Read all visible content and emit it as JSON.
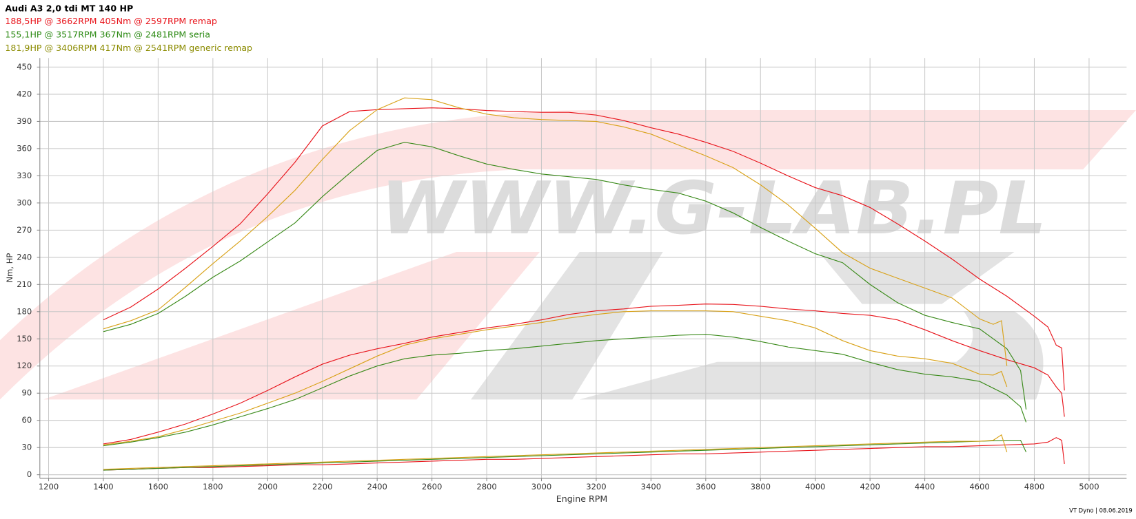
{
  "chart_data": {
    "type": "line",
    "title": "Audi A3 2,0 tdi MT 140 HP",
    "x_label": "Engine RPM",
    "y_label": "Nm, HP",
    "footer": "VT Dyno | 08.06.2019",
    "watermark": "WWW.G-LAB.PL",
    "xlim": [
      1168,
      5137
    ],
    "ylim": [
      -4,
      460
    ],
    "xticks": [
      1200,
      1400,
      1600,
      1800,
      2000,
      2200,
      2400,
      2600,
      2800,
      3000,
      3200,
      3400,
      3600,
      3800,
      4000,
      4200,
      4400,
      4600,
      4800,
      5000
    ],
    "yticks": [
      0,
      30,
      60,
      90,
      120,
      150,
      180,
      210,
      240,
      270,
      300,
      330,
      360,
      390,
      420,
      450
    ],
    "grid": true,
    "vehicles": [
      {
        "summary": "188,5HP @  3662RPM  405Nm @ 2597RPM  remap",
        "color": "#e8141b",
        "text_color": "#e8141b",
        "x": [
          1400,
          1500,
          1600,
          1700,
          1800,
          1900,
          2000,
          2100,
          2200,
          2300,
          2400,
          2500,
          2600,
          2700,
          2800,
          2900,
          3000,
          3100,
          3200,
          3300,
          3400,
          3500,
          3600,
          3700,
          3800,
          3900,
          4000,
          4100,
          4200,
          4300,
          4400,
          4500,
          4600,
          4700,
          4800,
          4850,
          4880,
          4900,
          4910
        ],
        "torque": [
          171,
          185,
          205,
          228,
          252,
          277,
          310,
          345,
          385,
          401,
          403,
          404,
          405,
          404,
          402,
          401,
          400,
          400,
          397,
          391,
          383,
          376,
          367,
          357,
          344,
          330,
          317,
          308,
          295,
          277,
          258,
          238,
          216,
          197,
          175,
          163,
          143,
          140,
          93
        ],
        "power": [
          34,
          39,
          47,
          56,
          67,
          79,
          93,
          108,
          122,
          132,
          139,
          145,
          152,
          157,
          162,
          166,
          171,
          177,
          181,
          183,
          186,
          187,
          188.5,
          188,
          186,
          183,
          181,
          178,
          176,
          171,
          160,
          148,
          137,
          127,
          118,
          110,
          97,
          90,
          64
        ],
        "loss": [
          5,
          6,
          7,
          8,
          8,
          9,
          10,
          11,
          11,
          12,
          13,
          14,
          15,
          16,
          17,
          17,
          18,
          19,
          20,
          21,
          22,
          23,
          23,
          24,
          25,
          26,
          27,
          28,
          29,
          30,
          31,
          31,
          32,
          33,
          34,
          36,
          41,
          38,
          12
        ]
      },
      {
        "summary": "155,1HP @  3517RPM  367Nm @ 2481RPM  seria",
        "color": "#3a8a1a",
        "text_color": "#2e8b16",
        "x": [
          1400,
          1500,
          1600,
          1700,
          1800,
          1900,
          2000,
          2100,
          2200,
          2300,
          2400,
          2500,
          2600,
          2700,
          2800,
          2900,
          3000,
          3100,
          3200,
          3300,
          3400,
          3500,
          3600,
          3700,
          3800,
          3900,
          4000,
          4100,
          4200,
          4300,
          4400,
          4500,
          4600,
          4700,
          4750,
          4770
        ],
        "torque": [
          158,
          166,
          178,
          197,
          218,
          236,
          257,
          278,
          307,
          333,
          358,
          367,
          362,
          352,
          343,
          337,
          332,
          329,
          326,
          320,
          315,
          311,
          302,
          289,
          273,
          258,
          244,
          234,
          210,
          190,
          176,
          168,
          161,
          139,
          115,
          72
        ],
        "power": [
          32,
          36,
          41,
          47,
          55,
          64,
          73,
          83,
          96,
          109,
          120,
          128,
          132,
          134,
          137,
          139,
          142,
          145,
          148,
          150,
          152,
          154,
          155,
          152,
          147,
          141,
          137,
          133,
          124,
          116,
          111,
          108,
          103,
          88,
          75,
          58
        ],
        "loss": [
          5,
          6,
          7,
          8,
          9,
          10,
          11,
          12,
          13,
          14,
          15,
          16,
          17,
          18,
          19,
          20,
          21,
          22,
          23,
          24,
          25,
          26,
          27,
          28,
          29,
          30,
          31,
          32,
          33,
          34,
          35,
          36,
          37,
          38,
          38,
          25
        ]
      },
      {
        "summary": "181,9HP @  3406RPM  417Nm @ 2541RPM  generic remap",
        "color": "#d9a219",
        "text_color": "#8b8b00",
        "x": [
          1400,
          1500,
          1600,
          1700,
          1800,
          1900,
          2000,
          2100,
          2200,
          2300,
          2400,
          2500,
          2600,
          2700,
          2800,
          2900,
          3000,
          3100,
          3200,
          3300,
          3400,
          3500,
          3600,
          3700,
          3800,
          3900,
          4000,
          4100,
          4200,
          4300,
          4400,
          4500,
          4600,
          4650,
          4680,
          4700
        ],
        "torque": [
          161,
          170,
          182,
          207,
          233,
          258,
          285,
          314,
          348,
          380,
          403,
          416,
          414,
          405,
          398,
          394,
          392,
          391,
          390,
          384,
          376,
          364,
          352,
          339,
          320,
          298,
          272,
          245,
          228,
          217,
          206,
          195,
          172,
          166,
          170,
          120
        ],
        "power": [
          33,
          37,
          42,
          50,
          59,
          68,
          79,
          90,
          103,
          117,
          131,
          143,
          150,
          155,
          160,
          164,
          168,
          173,
          177,
          180,
          181,
          181,
          181,
          180,
          175,
          170,
          162,
          148,
          137,
          131,
          128,
          123,
          111,
          110,
          114,
          97
        ],
        "loss": [
          6,
          7,
          8,
          9,
          10,
          11,
          12,
          13,
          14,
          15,
          16,
          17,
          18,
          19,
          20,
          21,
          22,
          23,
          24,
          25,
          26,
          27,
          28,
          29,
          30,
          31,
          32,
          33,
          34,
          35,
          36,
          37,
          37,
          38,
          44,
          25
        ]
      }
    ]
  }
}
